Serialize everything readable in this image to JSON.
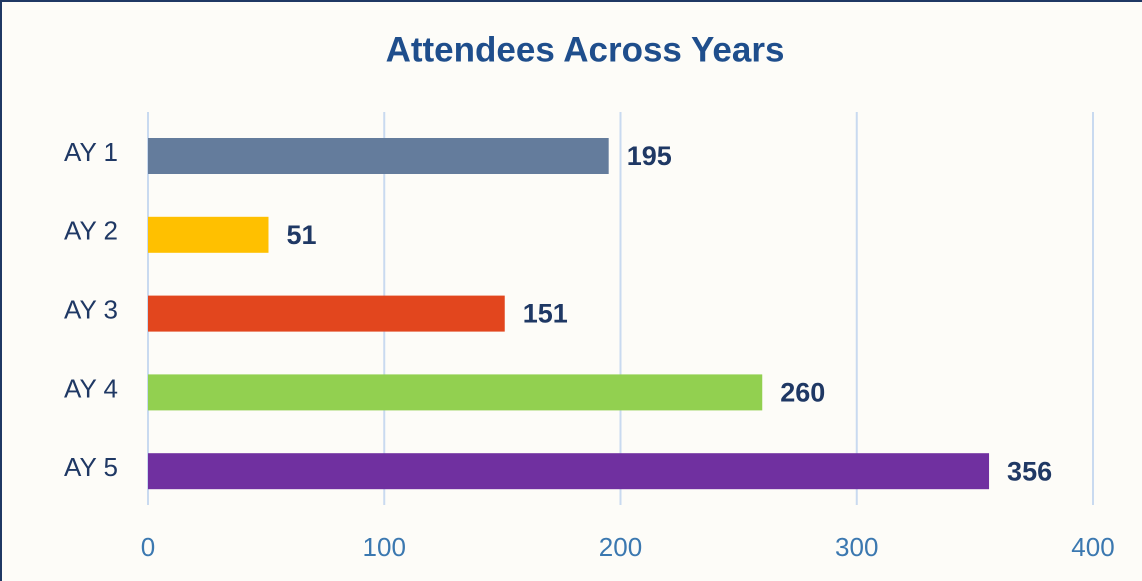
{
  "chart_data": {
    "type": "bar",
    "orientation": "horizontal",
    "title": "Attendees Across Years",
    "categories": [
      "AY 1",
      "AY 2",
      "AY 3",
      "AY 4",
      "AY 5"
    ],
    "values": [
      195,
      51,
      151,
      260,
      356
    ],
    "colors": [
      "#647c9c",
      "#ffc000",
      "#e2461e",
      "#92d050",
      "#7030a0"
    ],
    "xlim": [
      0,
      400
    ],
    "xticks": [
      0,
      100,
      200,
      300,
      400
    ],
    "grid": true
  }
}
